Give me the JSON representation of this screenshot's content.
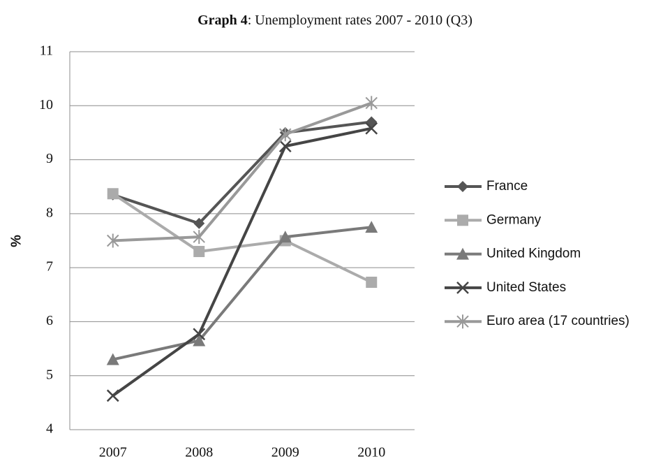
{
  "chart_data": {
    "type": "line",
    "title": [
      "Graph 4",
      ": Unemployment rates 2007 - 2010 (Q3)"
    ],
    "y_label": "%",
    "categories": [
      "2007",
      "2008",
      "2009",
      "2010"
    ],
    "series": [
      {
        "name": "France",
        "color": "#555555",
        "marker": "diamond",
        "values": [
          8.35,
          7.82,
          9.5,
          9.7
        ]
      },
      {
        "name": "Germany",
        "color": "#ababab",
        "marker": "square",
        "values": [
          8.37,
          7.3,
          7.5,
          6.73
        ]
      },
      {
        "name": "United Kingdom",
        "color": "#7a7a7a",
        "marker": "triangle",
        "values": [
          5.3,
          5.65,
          7.57,
          7.75
        ]
      },
      {
        "name": "United States",
        "color": "#454545",
        "marker": "x",
        "values": [
          4.63,
          5.77,
          9.25,
          9.58
        ]
      },
      {
        "name": "Euro area (17 countries)",
        "color": "#999999",
        "marker": "star",
        "values": [
          7.5,
          7.57,
          9.47,
          10.05
        ]
      }
    ],
    "ylim": [
      4,
      11
    ],
    "yticks": [
      4,
      5,
      6,
      7,
      8,
      9,
      10,
      11
    ],
    "grid": true,
    "legend": "right"
  }
}
